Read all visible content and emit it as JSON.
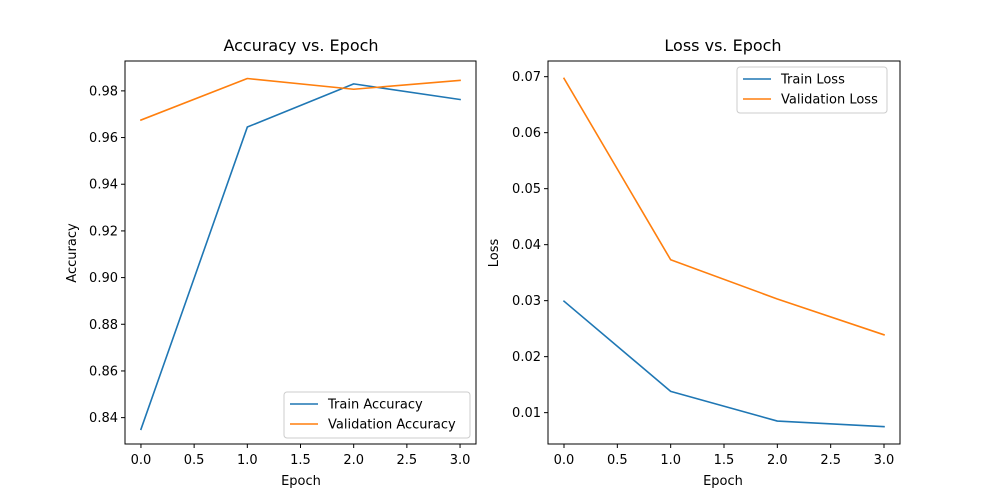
{
  "colors": {
    "train": "#1f77b4",
    "validation": "#ff7f0e"
  },
  "chart_data": [
    {
      "type": "line",
      "title": "Accuracy vs. Epoch",
      "xlabel": "Epoch",
      "ylabel": "Accuracy",
      "x": [
        0,
        1,
        2,
        3
      ],
      "xlim": [
        -0.15,
        3.15
      ],
      "ylim": [
        0.8287,
        0.9928
      ],
      "xticks": [
        0.0,
        0.5,
        1.0,
        1.5,
        2.0,
        2.5,
        3.0
      ],
      "xtick_labels": [
        "0.0",
        "0.5",
        "1.0",
        "1.5",
        "2.0",
        "2.5",
        "3.0"
      ],
      "yticks": [
        0.84,
        0.86,
        0.88,
        0.9,
        0.92,
        0.94,
        0.96,
        0.98
      ],
      "ytick_labels": [
        "0.84",
        "0.86",
        "0.88",
        "0.90",
        "0.92",
        "0.94",
        "0.96",
        "0.98"
      ],
      "legend_position": "bottom-right",
      "grid": false,
      "series": [
        {
          "name": "Train Accuracy",
          "color_key": "train",
          "values": [
            0.835,
            0.9645,
            0.983,
            0.9763
          ]
        },
        {
          "name": "Validation Accuracy",
          "color_key": "validation",
          "values": [
            0.9675,
            0.9853,
            0.9807,
            0.9845
          ]
        }
      ]
    },
    {
      "type": "line",
      "title": "Loss vs. Epoch",
      "xlabel": "Epoch",
      "ylabel": "Loss",
      "x": [
        0,
        1,
        2,
        3
      ],
      "xlim": [
        -0.15,
        3.15
      ],
      "ylim": [
        0.0044,
        0.0728
      ],
      "xticks": [
        0.0,
        0.5,
        1.0,
        1.5,
        2.0,
        2.5,
        3.0
      ],
      "xtick_labels": [
        "0.0",
        "0.5",
        "1.0",
        "1.5",
        "2.0",
        "2.5",
        "3.0"
      ],
      "yticks": [
        0.01,
        0.02,
        0.03,
        0.04,
        0.05,
        0.06,
        0.07
      ],
      "ytick_labels": [
        "0.01",
        "0.02",
        "0.03",
        "0.04",
        "0.05",
        "0.06",
        "0.07"
      ],
      "legend_position": "top-right",
      "grid": false,
      "series": [
        {
          "name": "Train Loss",
          "color_key": "train",
          "values": [
            0.0299,
            0.0138,
            0.0085,
            0.0075
          ]
        },
        {
          "name": "Validation Loss",
          "color_key": "validation",
          "values": [
            0.0697,
            0.0373,
            0.0303,
            0.0239
          ]
        }
      ]
    }
  ]
}
